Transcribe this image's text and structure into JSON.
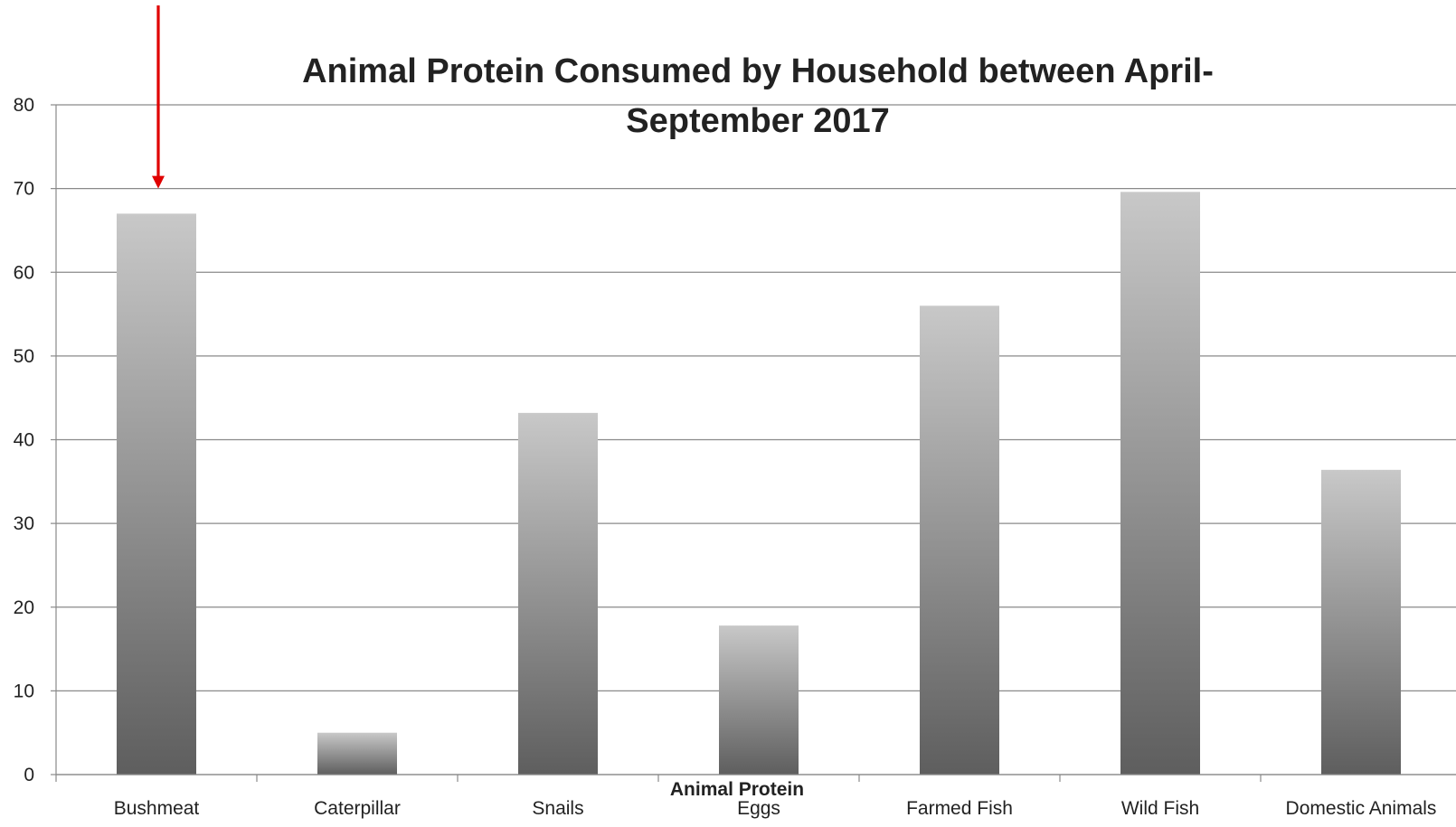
{
  "chart_data": {
    "type": "bar",
    "title_lines": [
      "Animal Protein Consumed by Household between April-",
      "September 2017"
    ],
    "xlabel": "Animal Protein",
    "ylabel": "",
    "categories": [
      "Bushmeat",
      "Caterpillar",
      "Snails",
      "Eggs",
      "Farmed Fish",
      "Wild Fish",
      "Domestic Animals"
    ],
    "values": [
      67,
      5,
      43.2,
      17.8,
      56,
      69.6,
      36.4
    ],
    "ylim": [
      0,
      80
    ],
    "yticks": [
      0,
      10,
      20,
      30,
      40,
      50,
      60,
      70,
      80
    ],
    "grid": true,
    "legend": "none",
    "bar_gradient": {
      "top": "#c8c8c8",
      "bottom": "#5e5e5e"
    },
    "annotation": {
      "type": "arrow",
      "color": "#e00000",
      "target_category": "Bushmeat"
    }
  }
}
